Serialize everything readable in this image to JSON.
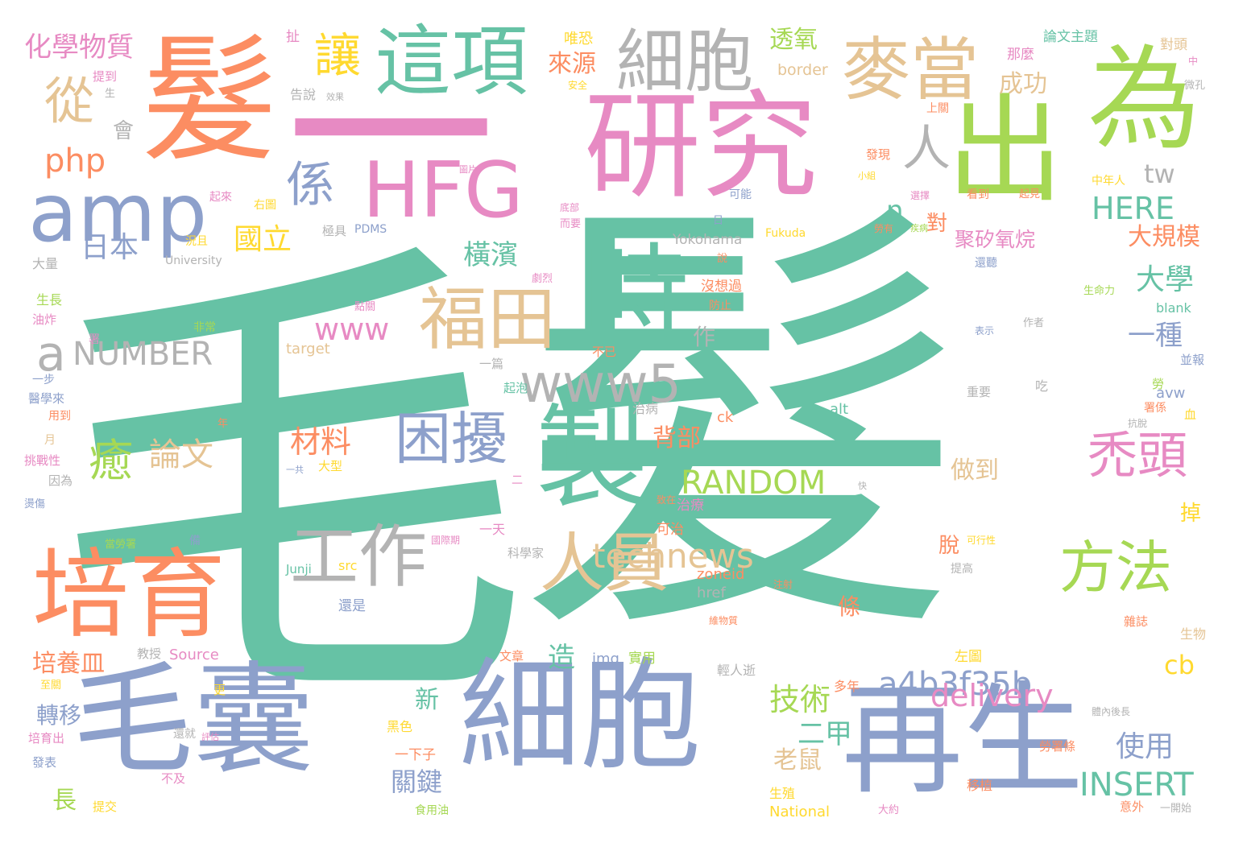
{
  "words": [
    {
      "id": "mao_big",
      "text": "毛",
      "color": "teal"
    },
    {
      "id": "fa_big",
      "text": "髮",
      "color": "teal"
    },
    {
      "id": "yi",
      "text": "一",
      "color": "pink"
    },
    {
      "id": "mao_fa",
      "text": "髮",
      "color": "orange"
    },
    {
      "id": "yanjiu",
      "text": "研究",
      "color": "pink"
    },
    {
      "id": "chu",
      "text": "出",
      "color": "green"
    },
    {
      "id": "wei",
      "text": "為",
      "color": "green"
    },
    {
      "id": "xibao_bottom",
      "text": "細胞",
      "color": "blue"
    },
    {
      "id": "maonang",
      "text": "毛囊",
      "color": "blue"
    },
    {
      "id": "zaisheng",
      "text": "再生",
      "color": "blue"
    },
    {
      "id": "peiyu",
      "text": "培育",
      "color": "orange"
    },
    {
      "id": "zhi",
      "text": "製",
      "color": "teal"
    },
    {
      "id": "shi",
      "text": "時",
      "color": "teal"
    },
    {
      "id": "hfg",
      "text": "HFG",
      "color": "pink"
    },
    {
      "id": "amp",
      "text": "amp",
      "color": "blue"
    },
    {
      "id": "zhexiang",
      "text": "這項",
      "color": "teal"
    },
    {
      "id": "xibao_top",
      "text": "細胞",
      "color": "silver"
    },
    {
      "id": "maidang",
      "text": "麥當",
      "color": "tan"
    },
    {
      "id": "fukuda",
      "text": "福田",
      "color": "tan"
    },
    {
      "id": "renyuan",
      "text": "人員",
      "color": "tan"
    },
    {
      "id": "gongzuo",
      "text": "工作",
      "color": "silver"
    },
    {
      "id": "fangfa",
      "text": "方法",
      "color": "green"
    },
    {
      "id": "kunrao",
      "text": "困擾",
      "color": "blue"
    },
    {
      "id": "tutou",
      "text": "禿頭",
      "color": "pink"
    },
    {
      "id": "www5",
      "text": "www5",
      "color": "silver"
    },
    {
      "id": "rang",
      "text": "讓",
      "color": "yellow"
    },
    {
      "id": "cong",
      "text": "從",
      "color": "tan"
    },
    {
      "id": "xi",
      "text": "係",
      "color": "blue"
    },
    {
      "id": "ren",
      "text": "人",
      "color": "silver"
    },
    {
      "id": "yu",
      "text": "癒",
      "color": "green"
    },
    {
      "id": "number",
      "text": "NUMBER",
      "color": "silver"
    },
    {
      "id": "a",
      "text": "a",
      "color": "silver"
    },
    {
      "id": "technews",
      "text": "technews",
      "color": "tan"
    },
    {
      "id": "a4b",
      "text": "a4b3f35b",
      "color": "blue"
    },
    {
      "id": "delivery",
      "text": "delivery",
      "color": "pink"
    },
    {
      "id": "random",
      "text": "RANDOM",
      "color": "green"
    },
    {
      "id": "insert",
      "text": "INSERT",
      "color": "teal"
    },
    {
      "id": "here",
      "text": "HERE",
      "color": "teal"
    },
    {
      "id": "www",
      "text": "www",
      "color": "pink"
    },
    {
      "id": "php",
      "text": "php",
      "color": "orange"
    },
    {
      "id": "huaxue",
      "text": "化學物質",
      "color": "pink"
    },
    {
      "id": "laiyuan",
      "text": "來源",
      "color": "orange"
    },
    {
      "id": "chenggong",
      "text": "成功",
      "color": "tan"
    },
    {
      "id": "touyang",
      "text": "透氧",
      "color": "green"
    },
    {
      "id": "guoli",
      "text": "國立",
      "color": "yellow"
    },
    {
      "id": "riben",
      "text": "日本",
      "color": "blue"
    },
    {
      "id": "hengbin",
      "text": "橫濱",
      "color": "teal"
    },
    {
      "id": "daxue",
      "text": "大學",
      "color": "teal"
    },
    {
      "id": "yizhong",
      "text": "一種",
      "color": "blue"
    },
    {
      "id": "dagui",
      "text": "大規模",
      "color": "orange"
    },
    {
      "id": "juxi",
      "text": "聚矽氧烷",
      "color": "pink"
    },
    {
      "id": "hui",
      "text": "會",
      "color": "silver"
    },
    {
      "id": "n",
      "text": "n",
      "color": "teal"
    },
    {
      "id": "tw",
      "text": "tw",
      "color": "silver"
    },
    {
      "id": "dui",
      "text": "對",
      "color": "orange"
    },
    {
      "id": "lunwen",
      "text": "論文",
      "color": "tan"
    },
    {
      "id": "cailiao",
      "text": "材料",
      "color": "orange"
    },
    {
      "id": "beibu",
      "text": "背部",
      "color": "orange"
    },
    {
      "id": "zuodao",
      "text": "做到",
      "color": "tan"
    },
    {
      "id": "jishu",
      "text": "技術",
      "color": "green"
    },
    {
      "id": "erjia",
      "text": "二甲",
      "color": "teal"
    },
    {
      "id": "laoshu",
      "text": "老鼠",
      "color": "tan"
    },
    {
      "id": "guanjian",
      "text": "關鍵",
      "color": "blue"
    },
    {
      "id": "shiyong",
      "text": "使用",
      "color": "blue"
    },
    {
      "id": "cb",
      "text": "cb",
      "color": "yellow"
    },
    {
      "id": "peiyangmin",
      "text": "培養皿",
      "color": "orange"
    },
    {
      "id": "zao",
      "text": "造",
      "color": "teal"
    },
    {
      "id": "xin",
      "text": "新",
      "color": "teal"
    },
    {
      "id": "zhuanyi",
      "text": "轉移",
      "color": "blue"
    },
    {
      "id": "chang",
      "text": "長",
      "color": "green"
    },
    {
      "id": "zuo",
      "text": "作",
      "color": "silver"
    },
    {
      "id": "tiao",
      "text": "條",
      "color": "orange"
    },
    {
      "id": "tuo",
      "text": "脫",
      "color": "orange"
    },
    {
      "id": "diao",
      "text": "掉",
      "color": "yellow"
    },
    {
      "id": "lunwenzhuti",
      "text": "論文主題",
      "color": "teal"
    },
    {
      "id": "weikong",
      "text": "唯恐",
      "color": "yellow"
    },
    {
      "id": "nage",
      "text": "那麼",
      "color": "pink"
    },
    {
      "id": "duitou",
      "text": "對頭",
      "color": "tan"
    },
    {
      "id": "border",
      "text": "border",
      "color": "tan"
    },
    {
      "id": "che",
      "text": "扯",
      "color": "pink"
    },
    {
      "id": "gaoshuo",
      "text": "告說",
      "color": "silver"
    },
    {
      "id": "tidao",
      "text": "提到",
      "color": "pink"
    },
    {
      "id": "yokohama",
      "text": "Yokohama",
      "color": "silver"
    },
    {
      "id": "fukuda_en",
      "text": "Fukuda",
      "color": "yellow"
    },
    {
      "id": "pdms",
      "text": "PDMS",
      "color": "blue"
    },
    {
      "id": "jiju",
      "text": "極具",
      "color": "silver"
    },
    {
      "id": "university",
      "text": "University",
      "color": "silver"
    },
    {
      "id": "daliang",
      "text": "大量",
      "color": "silver"
    },
    {
      "id": "shengzhang",
      "text": "生長",
      "color": "green"
    },
    {
      "id": "youzha",
      "text": "油炸",
      "color": "pink"
    },
    {
      "id": "yibu",
      "text": "一步",
      "color": "blue"
    },
    {
      "id": "yixue",
      "text": "醫學來",
      "color": "blue"
    },
    {
      "id": "yongdao",
      "text": "用到",
      "color": "orange"
    },
    {
      "id": "yue",
      "text": "月",
      "color": "tan"
    },
    {
      "id": "tiaozhan",
      "text": "挑戰性",
      "color": "pink"
    },
    {
      "id": "yinwei",
      "text": "因為",
      "color": "silver"
    },
    {
      "id": "target",
      "text": "target",
      "color": "tan"
    },
    {
      "id": "feichang",
      "text": "非常",
      "color": "green"
    },
    {
      "id": "buyi",
      "text": "不已",
      "color": "orange"
    },
    {
      "id": "yipian",
      "text": "一篇",
      "color": "silver"
    },
    {
      "id": "qipao",
      "text": "起泡",
      "color": "teal"
    },
    {
      "id": "zhibing",
      "text": "治病",
      "color": "silver"
    },
    {
      "id": "ck",
      "text": "ck",
      "color": "orange"
    },
    {
      "id": "alt",
      "text": "alt",
      "color": "teal"
    },
    {
      "id": "chi",
      "text": "吃",
      "color": "silver"
    },
    {
      "id": "avw",
      "text": "avw",
      "color": "blue"
    },
    {
      "id": "bingbao",
      "text": "並報",
      "color": "blue"
    },
    {
      "id": "zhongyao",
      "text": "重要",
      "color": "silver"
    },
    {
      "id": "shu",
      "text": "署係",
      "color": "orange"
    },
    {
      "id": "xue",
      "text": "血",
      "color": "yellow"
    },
    {
      "id": "lao",
      "text": "勞",
      "color": "green"
    },
    {
      "id": "zhiliao",
      "text": "治療",
      "color": "pink"
    },
    {
      "id": "keyi",
      "text": "可治",
      "color": "orange"
    },
    {
      "id": "yitian",
      "text": "一天",
      "color": "pink"
    },
    {
      "id": "kexuejia",
      "text": "科學家",
      "color": "silver"
    },
    {
      "id": "zoneid",
      "text": "zoneid",
      "color": "orange"
    },
    {
      "id": "href",
      "text": "href",
      "color": "silver"
    },
    {
      "id": "img",
      "text": "img",
      "color": "blue"
    },
    {
      "id": "shiyongyong",
      "text": "實用",
      "color": "green"
    },
    {
      "id": "source",
      "text": "Source",
      "color": "pink"
    },
    {
      "id": "jiaoshou",
      "text": "教授",
      "color": "silver"
    },
    {
      "id": "src",
      "text": "src",
      "color": "yellow"
    },
    {
      "id": "junji",
      "text": "Junji",
      "color": "teal"
    },
    {
      "id": "haishi",
      "text": "還是",
      "color": "blue"
    },
    {
      "id": "wenzhang",
      "text": "文章",
      "color": "orange"
    },
    {
      "id": "qingren",
      "text": "輕人逝",
      "color": "silver"
    },
    {
      "id": "zuotu",
      "text": "左圖",
      "color": "yellow"
    },
    {
      "id": "zazhi",
      "text": "雜誌",
      "color": "orange"
    },
    {
      "id": "shengwu",
      "text": "生物",
      "color": "tan"
    },
    {
      "id": "duonian",
      "text": "多年",
      "color": "orange"
    },
    {
      "id": "heise",
      "text": "黑色",
      "color": "yellow"
    },
    {
      "id": "yixiazi",
      "text": "一下子",
      "color": "orange"
    },
    {
      "id": "laoshutiao",
      "text": "勞署條",
      "color": "orange"
    },
    {
      "id": "yizhi",
      "text": "移植",
      "color": "orange"
    },
    {
      "id": "yiwai",
      "text": "意外",
      "color": "orange"
    },
    {
      "id": "yikaishi",
      "text": "一開始",
      "color": "silver"
    },
    {
      "id": "national",
      "text": "National",
      "color": "yellow"
    },
    {
      "id": "shengzhi",
      "text": "生殖",
      "color": "yellow"
    },
    {
      "id": "dayue",
      "text": "大約",
      "color": "pink"
    },
    {
      "id": "shiyongyou",
      "text": "食用油",
      "color": "green"
    },
    {
      "id": "tijiao",
      "text": "提交",
      "color": "yellow"
    },
    {
      "id": "fabiao",
      "text": "發表",
      "color": "blue"
    },
    {
      "id": "peiyuchu",
      "text": "培育出",
      "color": "pink"
    },
    {
      "id": "bujı",
      "text": "不及",
      "color": "pink"
    },
    {
      "id": "huanjiu",
      "text": "還就",
      "color": "silver"
    },
    {
      "id": "geng",
      "text": "更",
      "color": "yellow"
    },
    {
      "id": "zhiguan",
      "text": "至關",
      "color": "yellow"
    },
    {
      "id": "weidao",
      "text": "維物質",
      "color": "orange"
    },
    {
      "id": "zhushe",
      "text": "注射",
      "color": "orange"
    },
    {
      "id": "tigao",
      "text": "提高",
      "color": "silver"
    },
    {
      "id": "kexingxing",
      "text": "可行性",
      "color": "yellow"
    },
    {
      "id": "jiguo",
      "text": "國際期",
      "color": "pink"
    },
    {
      "id": "dangqianshu",
      "text": "當勞署",
      "color": "green"
    },
    {
      "id": "bei",
      "text": "備",
      "color": "blue"
    },
    {
      "id": "zhong",
      "text": "中",
      "color": "pink"
    },
    {
      "id": "weikongsm",
      "text": "微孔",
      "color": "silver"
    },
    {
      "id": "shangguan",
      "text": "上關",
      "color": "orange"
    },
    {
      "id": "faxian",
      "text": "發現",
      "color": "orange"
    },
    {
      "id": "zhongnian",
      "text": "中年人",
      "color": "yellow"
    },
    {
      "id": "kanjian",
      "text": "看到",
      "color": "orange"
    },
    {
      "id": "qijian",
      "text": "起見",
      "color": "orange"
    },
    {
      "id": "kaineng",
      "text": "可能",
      "color": "blue"
    },
    {
      "id": "youtu",
      "text": "右圖",
      "color": "yellow"
    },
    {
      "id": "qilai",
      "text": "起來",
      "color": "pink"
    },
    {
      "id": "kuangqi",
      "text": "況且",
      "color": "yellow"
    },
    {
      "id": "shengmingli",
      "text": "生命力",
      "color": "green"
    },
    {
      "id": "blank",
      "text": "blank",
      "color": "teal"
    },
    {
      "id": "zuozhe",
      "text": "作者",
      "color": "silver"
    },
    {
      "id": "biaoshi",
      "text": "表示",
      "color": "blue"
    },
    {
      "id": "meiyou",
      "text": "沒想過",
      "color": "orange"
    },
    {
      "id": "fangzhi",
      "text": "防止",
      "color": "orange"
    },
    {
      "id": "dianguan",
      "text": "點關",
      "color": "pink"
    },
    {
      "id": "julie",
      "text": "劇烈",
      "color": "pink"
    },
    {
      "id": "ri",
      "text": "日",
      "color": "blue"
    },
    {
      "id": "eryao",
      "text": "而要",
      "color": "pink"
    },
    {
      "id": "dibu",
      "text": "底部",
      "color": "pink"
    },
    {
      "id": "xuanze",
      "text": "選擇",
      "color": "pink"
    },
    {
      "id": "anquan",
      "text": "安全",
      "color": "yellow"
    },
    {
      "id": "xiaoguo",
      "text": "效果",
      "color": "silver"
    },
    {
      "id": "shu2",
      "text": "署",
      "color": "pink"
    },
    {
      "id": "nian",
      "text": "年",
      "color": "orange"
    },
    {
      "id": "yiming",
      "text": "一共",
      "color": "blue"
    },
    {
      "id": "daxing",
      "text": "大型",
      "color": "yellow"
    },
    {
      "id": "zhuanxin",
      "text": "還聽",
      "color": "blue"
    },
    {
      "id": "laoyou",
      "text": "勞有",
      "color": "orange"
    },
    {
      "id": "shuo",
      "text": "說",
      "color": "orange"
    },
    {
      "id": "tinei",
      "text": "體內後長",
      "color": "silver"
    },
    {
      "id": "shengchan",
      "text": "生",
      "color": "silver"
    },
    {
      "id": "jibing",
      "text": "疾病",
      "color": "green"
    },
    {
      "id": "zhuangan",
      "text": "頭皮",
      "color": "pink"
    },
    {
      "id": "tuzi",
      "text": "圖片",
      "color": "pink"
    },
    {
      "id": "xiaotiao",
      "text": "小組",
      "color": "yellow"
    },
    {
      "id": "qiusi",
      "text": "抗脫",
      "color": "silver"
    },
    {
      "id": "er",
      "text": "二",
      "color": "pink"
    },
    {
      "id": "kuai",
      "text": "快",
      "color": "silver"
    },
    {
      "id": "zhijin",
      "text": "致在",
      "color": "orange"
    },
    {
      "id": "pinggu",
      "text": "評估",
      "color": "pink"
    },
    {
      "id": "dianzi",
      "text": "燙傷",
      "color": "blue"
    }
  ]
}
